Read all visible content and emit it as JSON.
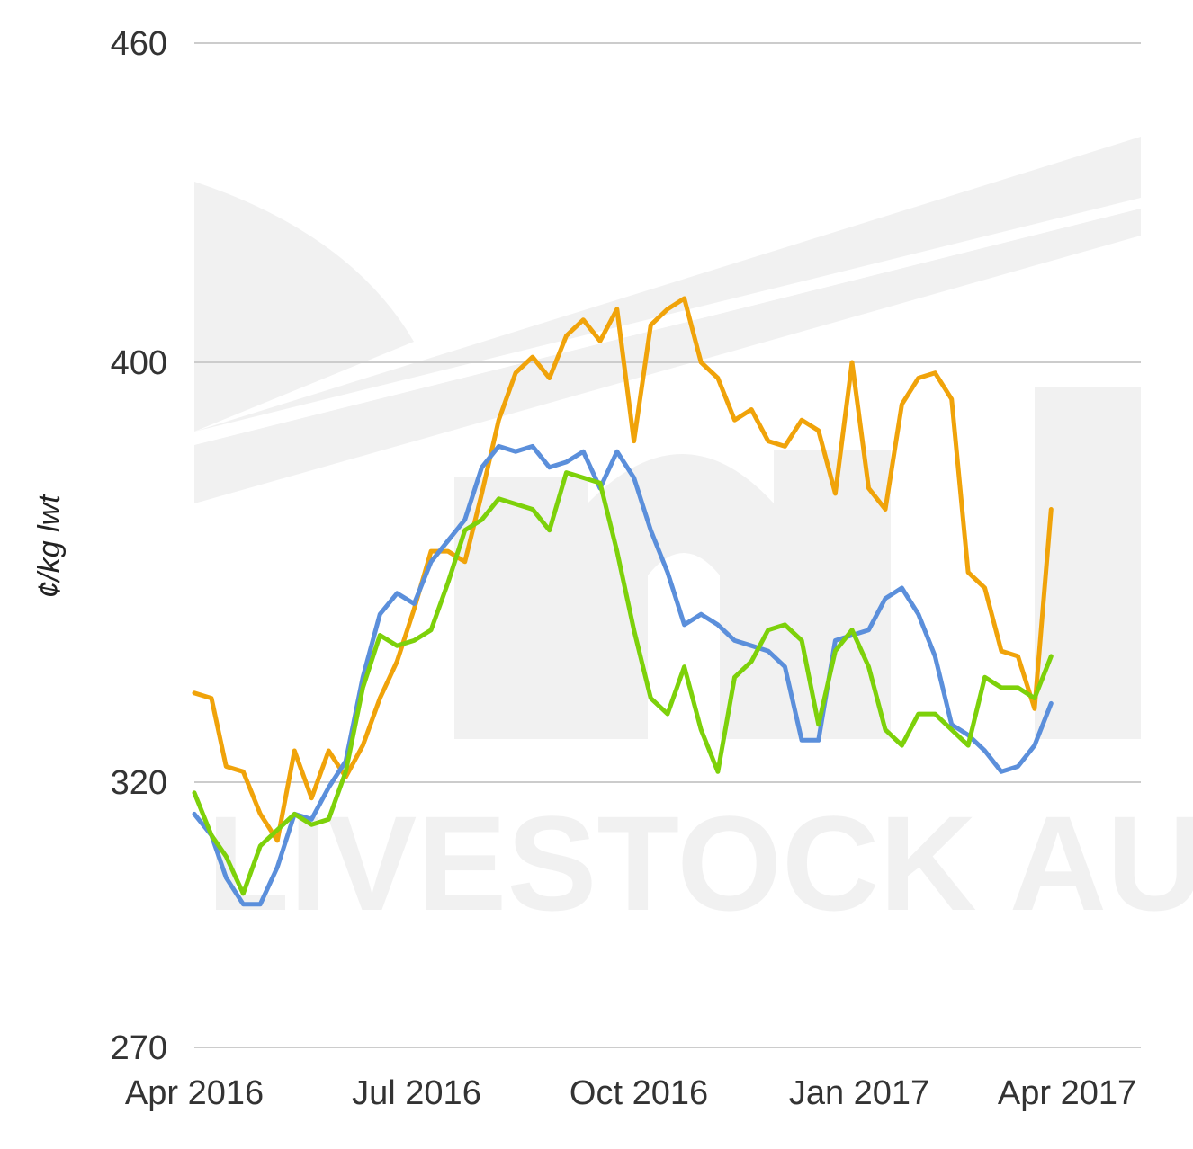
{
  "watermark": {
    "text": "LIVESTOCK AUS"
  },
  "chart_data": {
    "type": "line",
    "title": "",
    "xlabel": "",
    "ylabel": "¢/kg lwt",
    "ylim": [
      270,
      460
    ],
    "yticks": [
      270,
      320,
      400,
      460
    ],
    "xlim": [
      "2016-04-01",
      "2017-04-01"
    ],
    "xticks": [
      {
        "date": "2016-04-01",
        "label": "Apr 2016"
      },
      {
        "date": "2016-07-01",
        "label": "Jul 2016"
      },
      {
        "date": "2016-10-01",
        "label": "Oct 2016"
      },
      {
        "date": "2017-01-01",
        "label": "Jan 2017"
      },
      {
        "date": "2017-04-01",
        "label": "Apr 2017"
      }
    ],
    "grid": true,
    "legend": false,
    "series": [
      {
        "color": "#f0a30a",
        "x": [
          "2016-04-01",
          "2016-04-08",
          "2016-04-14",
          "2016-04-21",
          "2016-04-28",
          "2016-05-05",
          "2016-05-12",
          "2016-05-19",
          "2016-05-26",
          "2016-06-02",
          "2016-06-09",
          "2016-06-16",
          "2016-06-23",
          "2016-06-30",
          "2016-07-07",
          "2016-07-14",
          "2016-07-21",
          "2016-07-28",
          "2016-08-04",
          "2016-08-11",
          "2016-08-18",
          "2016-08-25",
          "2016-09-01",
          "2016-09-08",
          "2016-09-15",
          "2016-09-22",
          "2016-09-29",
          "2016-10-06",
          "2016-10-13",
          "2016-10-20",
          "2016-10-27",
          "2016-11-03",
          "2016-11-10",
          "2016-11-17",
          "2016-11-24",
          "2016-12-01",
          "2016-12-08",
          "2016-12-15",
          "2016-12-22",
          "2016-12-29",
          "2017-01-05",
          "2017-01-12",
          "2017-01-19",
          "2017-01-26",
          "2017-02-02",
          "2017-02-09",
          "2017-02-16",
          "2017-02-23",
          "2017-03-02",
          "2017-03-09",
          "2017-03-16",
          "2017-03-23"
        ],
        "y": [
          337,
          336,
          323,
          322,
          314,
          309,
          326,
          317,
          326,
          321,
          327,
          336,
          343,
          353,
          364,
          364,
          362,
          375,
          389,
          398,
          401,
          397,
          405,
          408,
          404,
          410,
          385,
          407,
          410,
          412,
          400,
          397,
          389,
          391,
          385,
          384,
          389,
          387,
          375,
          400,
          376,
          372,
          392,
          397,
          398,
          393,
          360,
          357,
          345,
          344,
          334,
          372
        ]
      },
      {
        "color": "#5b8fdb",
        "x": [
          "2016-04-01",
          "2016-04-08",
          "2016-04-14",
          "2016-04-21",
          "2016-04-28",
          "2016-05-05",
          "2016-05-12",
          "2016-05-19",
          "2016-05-26",
          "2016-06-02",
          "2016-06-09",
          "2016-06-16",
          "2016-06-23",
          "2016-06-30",
          "2016-07-07",
          "2016-07-14",
          "2016-07-21",
          "2016-07-28",
          "2016-08-04",
          "2016-08-11",
          "2016-08-18",
          "2016-08-25",
          "2016-09-01",
          "2016-09-08",
          "2016-09-15",
          "2016-09-22",
          "2016-09-29",
          "2016-10-06",
          "2016-10-13",
          "2016-10-20",
          "2016-10-27",
          "2016-11-03",
          "2016-11-10",
          "2016-11-17",
          "2016-11-24",
          "2016-12-01",
          "2016-12-08",
          "2016-12-15",
          "2016-12-22",
          "2016-12-29",
          "2017-01-05",
          "2017-01-12",
          "2017-01-19",
          "2017-01-26",
          "2017-02-02",
          "2017-02-09",
          "2017-02-16",
          "2017-02-23",
          "2017-03-02",
          "2017-03-09",
          "2017-03-16",
          "2017-03-23"
        ],
        "y": [
          314,
          310,
          302,
          297,
          297,
          304,
          314,
          313,
          319,
          324,
          340,
          352,
          356,
          354,
          362,
          366,
          370,
          380,
          384,
          383,
          384,
          380,
          381,
          383,
          376,
          383,
          378,
          368,
          360,
          350,
          352,
          350,
          347,
          346,
          345,
          342,
          328,
          328,
          347,
          348,
          349,
          355,
          357,
          352,
          344,
          331,
          329,
          326,
          322,
          323,
          327,
          335
        ]
      },
      {
        "color": "#7dd10a",
        "x": [
          "2016-04-01",
          "2016-04-08",
          "2016-04-14",
          "2016-04-21",
          "2016-04-28",
          "2016-05-05",
          "2016-05-12",
          "2016-05-19",
          "2016-05-26",
          "2016-06-02",
          "2016-06-09",
          "2016-06-16",
          "2016-06-23",
          "2016-06-30",
          "2016-07-07",
          "2016-07-14",
          "2016-07-21",
          "2016-07-28",
          "2016-08-04",
          "2016-08-11",
          "2016-08-18",
          "2016-08-25",
          "2016-09-01",
          "2016-09-08",
          "2016-09-15",
          "2016-09-22",
          "2016-09-29",
          "2016-10-06",
          "2016-10-13",
          "2016-10-20",
          "2016-10-27",
          "2016-11-03",
          "2016-11-10",
          "2016-11-17",
          "2016-11-24",
          "2016-12-01",
          "2016-12-08",
          "2016-12-15",
          "2016-12-22",
          "2016-12-29",
          "2017-01-05",
          "2017-01-12",
          "2017-01-19",
          "2017-01-26",
          "2017-02-02",
          "2017-02-09",
          "2017-02-16",
          "2017-02-23",
          "2017-03-02",
          "2017-03-09",
          "2017-03-16",
          "2017-03-23"
        ],
        "y": [
          318,
          310,
          306,
          299,
          308,
          311,
          314,
          312,
          313,
          322,
          338,
          348,
          346,
          347,
          349,
          358,
          368,
          370,
          374,
          373,
          372,
          368,
          379,
          378,
          377,
          364,
          349,
          336,
          333,
          342,
          330,
          322,
          340,
          343,
          349,
          350,
          347,
          331,
          345,
          349,
          342,
          330,
          327,
          333,
          333,
          330,
          327,
          340,
          338,
          338,
          336,
          344
        ]
      }
    ]
  }
}
